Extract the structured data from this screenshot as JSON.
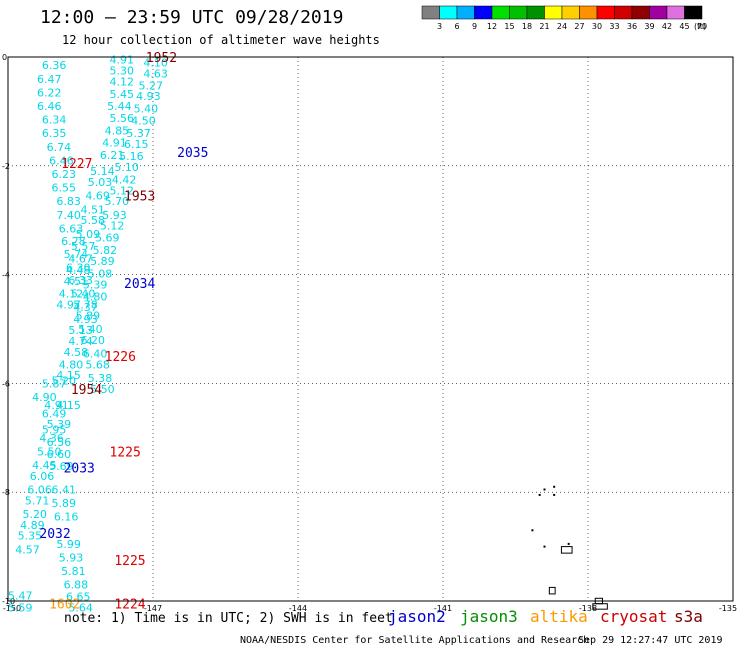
{
  "header": {
    "title": "12:00 – 23:59 UTC 09/28/2019",
    "subtitle": "12 hour collection of altimeter wave heights"
  },
  "legend": {
    "unit": "(ft)",
    "bins": [
      {
        "label": "3",
        "color": "#808080"
      },
      {
        "label": "6",
        "color": "#00ffff"
      },
      {
        "label": "9",
        "color": "#00b0ff"
      },
      {
        "label": "12",
        "color": "#0000ff"
      },
      {
        "label": "15",
        "color": "#00e000"
      },
      {
        "label": "18",
        "color": "#00c000"
      },
      {
        "label": "21",
        "color": "#009000"
      },
      {
        "label": "24",
        "color": "#ffff00"
      },
      {
        "label": "27",
        "color": "#ffd000"
      },
      {
        "label": "30",
        "color": "#ff9000"
      },
      {
        "label": "33",
        "color": "#ff0000"
      },
      {
        "label": "36",
        "color": "#d00000"
      },
      {
        "label": "39",
        "color": "#900000"
      },
      {
        "label": "42",
        "color": "#a000a0"
      },
      {
        "label": "45",
        "color": "#e070e0"
      },
      {
        "label": "70",
        "color": "#000000"
      }
    ]
  },
  "footer": {
    "note": "note: 1) Time is in UTC; 2) SWH is in feet",
    "satellites": [
      {
        "name": "jason2",
        "color": "#0000cc"
      },
      {
        "name": "jason3",
        "color": "#009000"
      },
      {
        "name": "altika",
        "color": "#ff9900"
      },
      {
        "name": "cryosat",
        "color": "#cc0000"
      },
      {
        "name": "s3a",
        "color": "#800000"
      }
    ],
    "credit": "NOAA/NESDIS Center for Satellite Applications and Research",
    "timestamp": "Sep 29 12:27:47 UTC 2019"
  },
  "chart_data": {
    "type": "scatter",
    "xlim": [
      -150,
      -135
    ],
    "ylim": [
      -10,
      0
    ],
    "x_ticks": [
      "-150",
      "-147",
      "-144",
      "-141",
      "-138",
      "-135"
    ],
    "y_ticks": [
      "0",
      "-2",
      "-4",
      "-6",
      "-8",
      "-10"
    ],
    "grid": true,
    "swh_color": "#00d8e8",
    "swh_values": [
      {
        "lon": -147.9,
        "lat": -0.05,
        "v": "4.91"
      },
      {
        "lon": -147.9,
        "lat": -0.25,
        "v": "5.30"
      },
      {
        "lon": -147.9,
        "lat": -0.45,
        "v": "4.12"
      },
      {
        "lon": -147.9,
        "lat": -0.68,
        "v": "5.45"
      },
      {
        "lon": -147.95,
        "lat": -0.9,
        "v": "5.44"
      },
      {
        "lon": -147.9,
        "lat": -1.12,
        "v": "5.56"
      },
      {
        "lon": -148.0,
        "lat": -1.35,
        "v": "4.85"
      },
      {
        "lon": -148.05,
        "lat": -1.57,
        "v": "4.91"
      },
      {
        "lon": -148.1,
        "lat": -1.8,
        "v": "6.21"
      },
      {
        "lon": -148.3,
        "lat": -2.1,
        "v": "5.14"
      },
      {
        "lon": -148.35,
        "lat": -2.3,
        "v": "5.03"
      },
      {
        "lon": -148.4,
        "lat": -2.55,
        "v": "4.69"
      },
      {
        "lon": -148.5,
        "lat": -2.8,
        "v": "4.51"
      },
      {
        "lon": -148.5,
        "lat": -3.0,
        "v": "5.58"
      },
      {
        "lon": -148.6,
        "lat": -3.25,
        "v": "5.09"
      },
      {
        "lon": -148.7,
        "lat": -3.47,
        "v": "5.57"
      },
      {
        "lon": -148.75,
        "lat": -3.7,
        "v": "4.67"
      },
      {
        "lon": -148.8,
        "lat": -3.92,
        "v": "4.48"
      },
      {
        "lon": -148.85,
        "lat": -4.12,
        "v": "4.51"
      },
      {
        "lon": -148.95,
        "lat": -4.35,
        "v": "4.12"
      },
      {
        "lon": -149.0,
        "lat": -4.55,
        "v": "4.97"
      },
      {
        "lon": -147.2,
        "lat": -0.1,
        "v": "4.10"
      },
      {
        "lon": -147.2,
        "lat": -0.3,
        "v": "4.63"
      },
      {
        "lon": -147.3,
        "lat": -0.52,
        "v": "5.27"
      },
      {
        "lon": -147.35,
        "lat": -0.72,
        "v": "4.93"
      },
      {
        "lon": -147.4,
        "lat": -0.95,
        "v": "5.40"
      },
      {
        "lon": -147.45,
        "lat": -1.17,
        "v": "4.50"
      },
      {
        "lon": -147.55,
        "lat": -1.4,
        "v": "5.37"
      },
      {
        "lon": -147.6,
        "lat": -1.6,
        "v": "6.15"
      },
      {
        "lon": -147.7,
        "lat": -1.82,
        "v": "5.16"
      },
      {
        "lon": -147.8,
        "lat": -2.02,
        "v": "5.10"
      },
      {
        "lon": -147.85,
        "lat": -2.25,
        "v": "4.42"
      },
      {
        "lon": -147.9,
        "lat": -2.45,
        "v": "5.12"
      },
      {
        "lon": -148.0,
        "lat": -2.65,
        "v": "5.70"
      },
      {
        "lon": -148.05,
        "lat": -2.9,
        "v": "5.93"
      },
      {
        "lon": -148.1,
        "lat": -3.1,
        "v": "5.12"
      },
      {
        "lon": -148.2,
        "lat": -3.32,
        "v": "5.69"
      },
      {
        "lon": -148.25,
        "lat": -3.55,
        "v": "5.82"
      },
      {
        "lon": -148.3,
        "lat": -3.75,
        "v": "5.89"
      },
      {
        "lon": -148.35,
        "lat": -3.98,
        "v": "5.08"
      },
      {
        "lon": -148.45,
        "lat": -4.18,
        "v": "5.39"
      },
      {
        "lon": -148.45,
        "lat": -4.4,
        "v": "4.80"
      },
      {
        "lon": -148.65,
        "lat": -4.6,
        "v": "4.37"
      },
      {
        "lon": -148.65,
        "lat": -4.82,
        "v": "4.93"
      },
      {
        "lon": -148.75,
        "lat": -5.02,
        "v": "5.13"
      },
      {
        "lon": -148.75,
        "lat": -5.22,
        "v": "4.74"
      },
      {
        "lon": -148.85,
        "lat": -5.42,
        "v": "4.58"
      },
      {
        "lon": -148.95,
        "lat": -5.65,
        "v": "4.80"
      },
      {
        "lon": -149.0,
        "lat": -5.85,
        "v": "4.15"
      },
      {
        "lon": -149.1,
        "lat": -5.95,
        "v": "5.20"
      },
      {
        "lon": -149.3,
        "lat": -6.0,
        "v": "5.87"
      },
      {
        "lon": -149.3,
        "lat": -6.55,
        "v": "6.49"
      },
      {
        "lon": -149.3,
        "lat": -6.85,
        "v": "5.95"
      },
      {
        "lon": -149.2,
        "lat": -7.08,
        "v": "6.56"
      },
      {
        "lon": -149.2,
        "lat": -7.3,
        "v": "6.60"
      },
      {
        "lon": -149.15,
        "lat": -7.52,
        "v": "5.69"
      },
      {
        "lon": -149.1,
        "lat": -7.95,
        "v": "6.41"
      },
      {
        "lon": -149.1,
        "lat": -8.2,
        "v": "5.89"
      },
      {
        "lon": -149.05,
        "lat": -8.45,
        "v": "6.16"
      },
      {
        "lon": -149.0,
        "lat": -8.95,
        "v": "5.99"
      },
      {
        "lon": -148.95,
        "lat": -9.2,
        "v": "5.93"
      },
      {
        "lon": -148.9,
        "lat": -9.45,
        "v": "5.81"
      },
      {
        "lon": -148.85,
        "lat": -9.7,
        "v": "6.88"
      },
      {
        "lon": -148.8,
        "lat": -9.92,
        "v": "6.65"
      },
      {
        "lon": -148.75,
        "lat": -10.12,
        "v": "5.64"
      },
      {
        "lon": -149.25,
        "lat": -6.4,
        "v": "4.91"
      },
      {
        "lon": -149.5,
        "lat": -6.25,
        "v": "4.90"
      },
      {
        "lon": -150.0,
        "lat": -9.9,
        "v": "5.47"
      },
      {
        "lon": -150.0,
        "lat": -10.12,
        "v": "5.59"
      },
      {
        "lon": -149.3,
        "lat": -0.15,
        "v": "6.36"
      },
      {
        "lon": -149.4,
        "lat": -0.4,
        "v": "6.47"
      },
      {
        "lon": -149.4,
        "lat": -0.65,
        "v": "6.22"
      },
      {
        "lon": -149.4,
        "lat": -0.9,
        "v": "6.46"
      },
      {
        "lon": -149.3,
        "lat": -1.15,
        "v": "6.34"
      },
      {
        "lon": -149.3,
        "lat": -1.4,
        "v": "6.35"
      },
      {
        "lon": -149.2,
        "lat": -1.65,
        "v": "6.74"
      },
      {
        "lon": -149.15,
        "lat": -1.9,
        "v": "6.46"
      },
      {
        "lon": -149.1,
        "lat": -2.15,
        "v": "6.23"
      },
      {
        "lon": -149.1,
        "lat": -2.4,
        "v": "6.55"
      },
      {
        "lon": -149.0,
        "lat": -2.65,
        "v": "6.83"
      },
      {
        "lon": -149.0,
        "lat": -2.9,
        "v": "7.40"
      },
      {
        "lon": -148.95,
        "lat": -3.15,
        "v": "6.63"
      },
      {
        "lon": -148.9,
        "lat": -3.38,
        "v": "6.28"
      },
      {
        "lon": -148.85,
        "lat": -3.62,
        "v": "5.74"
      },
      {
        "lon": -148.8,
        "lat": -3.87,
        "v": "6.30"
      },
      {
        "lon": -148.75,
        "lat": -4.1,
        "v": "6.33"
      },
      {
        "lon": -148.7,
        "lat": -4.35,
        "v": "5.40"
      },
      {
        "lon": -148.65,
        "lat": -4.55,
        "v": "5.78"
      },
      {
        "lon": -148.6,
        "lat": -4.75,
        "v": "5.89"
      },
      {
        "lon": -148.55,
        "lat": -5.0,
        "v": "5.40"
      },
      {
        "lon": -148.5,
        "lat": -5.2,
        "v": "6.20"
      },
      {
        "lon": -148.45,
        "lat": -5.45,
        "v": "6.40"
      },
      {
        "lon": -148.4,
        "lat": -5.65,
        "v": "5.68"
      },
      {
        "lon": -148.35,
        "lat": -5.9,
        "v": "5.38"
      },
      {
        "lon": -148.3,
        "lat": -6.1,
        "v": "5.50"
      },
      {
        "lon": -149.0,
        "lat": -6.4,
        "v": "4.15"
      },
      {
        "lon": -149.2,
        "lat": -6.75,
        "v": "5.39"
      },
      {
        "lon": -149.35,
        "lat": -7.0,
        "v": "4.36"
      },
      {
        "lon": -149.4,
        "lat": -7.25,
        "v": "5.50"
      },
      {
        "lon": -149.5,
        "lat": -7.5,
        "v": "4.45"
      },
      {
        "lon": -149.55,
        "lat": -7.7,
        "v": "6.06"
      },
      {
        "lon": -149.6,
        "lat": -7.95,
        "v": "6.06"
      },
      {
        "lon": -149.65,
        "lat": -8.15,
        "v": "5.71"
      },
      {
        "lon": -149.7,
        "lat": -8.4,
        "v": "5.20"
      },
      {
        "lon": -149.75,
        "lat": -8.6,
        "v": "4.89"
      },
      {
        "lon": -149.8,
        "lat": -8.8,
        "v": "5.35"
      },
      {
        "lon": -149.85,
        "lat": -9.05,
        "v": "4.57"
      }
    ],
    "time_labels": [
      {
        "lon": -147.15,
        "lat": 0.0,
        "v": "1952",
        "color": "#800000"
      },
      {
        "lon": -146.5,
        "lat": -1.75,
        "v": "2035",
        "color": "#0000cc"
      },
      {
        "lon": -148.9,
        "lat": -1.95,
        "v": "1227",
        "color": "#dd0000"
      },
      {
        "lon": -147.6,
        "lat": -2.55,
        "v": "1953",
        "color": "#800000"
      },
      {
        "lon": -147.6,
        "lat": -4.15,
        "v": "2034",
        "color": "#0000cc"
      },
      {
        "lon": -148.0,
        "lat": -5.5,
        "v": "1226",
        "color": "#dd0000"
      },
      {
        "lon": -148.7,
        "lat": -6.1,
        "v": "1954",
        "color": "#800000"
      },
      {
        "lon": -147.9,
        "lat": -7.25,
        "v": "1225",
        "color": "#dd0000"
      },
      {
        "lon": -148.85,
        "lat": -7.55,
        "v": "2033",
        "color": "#0000cc"
      },
      {
        "lon": -149.35,
        "lat": -8.75,
        "v": "2032",
        "color": "#0000cc"
      },
      {
        "lon": -147.8,
        "lat": -9.25,
        "v": "1225",
        "color": "#dd0000"
      },
      {
        "lon": -149.15,
        "lat": -10.05,
        "v": "1602",
        "color": "#ff9900"
      },
      {
        "lon": -147.8,
        "lat": -10.05,
        "v": "1224",
        "color": "#dd0000"
      }
    ],
    "land_markers": [
      {
        "lon": -139.0,
        "lat": -8.05
      },
      {
        "lon": -138.9,
        "lat": -7.95
      },
      {
        "lon": -138.7,
        "lat": -8.05
      },
      {
        "lon": -138.7,
        "lat": -7.9
      },
      {
        "lon": -139.15,
        "lat": -8.7
      },
      {
        "lon": -138.9,
        "lat": -9.0
      },
      {
        "lon": -138.4,
        "lat": -8.95
      }
    ],
    "land_outlines": [
      {
        "lon": -138.55,
        "lat": -9.0,
        "w": 0.22,
        "h": 0.12
      },
      {
        "lon": -138.8,
        "lat": -9.75,
        "w": 0.12,
        "h": 0.12
      },
      {
        "lon": -137.9,
        "lat": -10.05,
        "w": 0.3,
        "h": 0.1
      },
      {
        "lon": -137.85,
        "lat": -9.95,
        "w": 0.15,
        "h": 0.1
      }
    ]
  }
}
